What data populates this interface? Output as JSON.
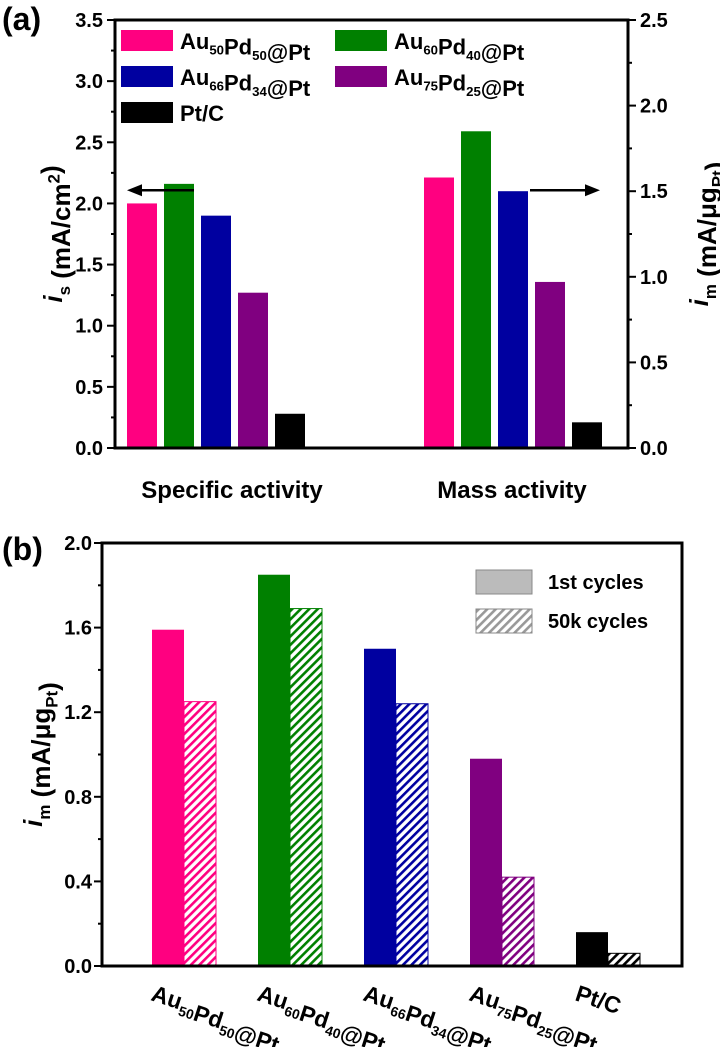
{
  "colors": {
    "Au50Pd50@Pt": "#ff0080",
    "Au60Pd40@Pt": "#008000",
    "Au66Pd34@Pt": "#0000a0",
    "Au75Pd25@Pt": "#800080",
    "Pt/C": "#000000",
    "legend_gray": "#bbbbbb"
  },
  "chart_data": [
    {
      "type": "bar",
      "panel_label": "(a)",
      "categories": [
        "Specific activity",
        "Mass activity"
      ],
      "series": [
        {
          "name": "Au50Pd50@Pt",
          "values": [
            2.0,
            1.58
          ]
        },
        {
          "name": "Au60Pd40@Pt",
          "values": [
            2.16,
            1.85
          ]
        },
        {
          "name": "Au66Pd34@Pt",
          "values": [
            1.9,
            1.5
          ]
        },
        {
          "name": "Au75Pd25@Pt",
          "values": [
            1.27,
            0.97
          ]
        },
        {
          "name": "Pt/C",
          "values": [
            0.28,
            0.15
          ]
        }
      ],
      "axis_for_category": [
        "left",
        "right"
      ],
      "ylabel_left": "i_s (mA/cm^2)",
      "ylabel_right": "i_m (mA/μg_Pt)",
      "ylim_left": [
        0,
        3.5
      ],
      "ylim_right": [
        0,
        2.5
      ],
      "yticks_left": [
        "0.0",
        "0.5",
        "1.0",
        "1.5",
        "2.0",
        "2.5",
        "3.0",
        "3.5"
      ],
      "yticks_right": [
        "0.0",
        "0.5",
        "1.0",
        "1.5",
        "2.0",
        "2.5"
      ],
      "arrows": [
        "left",
        "right"
      ],
      "legend_placement": "top-left",
      "grid": false
    },
    {
      "type": "bar",
      "panel_label": "(b)",
      "categories": [
        "Au50Pd50@Pt",
        "Au60Pd40@Pt",
        "Au66Pd34@Pt",
        "Au75Pd25@Pt",
        "Pt/C"
      ],
      "series": [
        {
          "name": "1st cycles",
          "values": [
            1.59,
            1.85,
            1.5,
            0.98,
            0.16
          ],
          "fill": "solid"
        },
        {
          "name": "50k cycles",
          "values": [
            1.25,
            1.69,
            1.24,
            0.42,
            0.06
          ],
          "fill": "hatched"
        }
      ],
      "ylabel": "i_m (mA/μg_Pt)",
      "ylim": [
        0,
        2.0
      ],
      "yticks": [
        "0.0",
        "0.4",
        "0.8",
        "1.2",
        "1.6",
        "2.0"
      ],
      "legend_placement": "top-right",
      "grid": false
    }
  ]
}
